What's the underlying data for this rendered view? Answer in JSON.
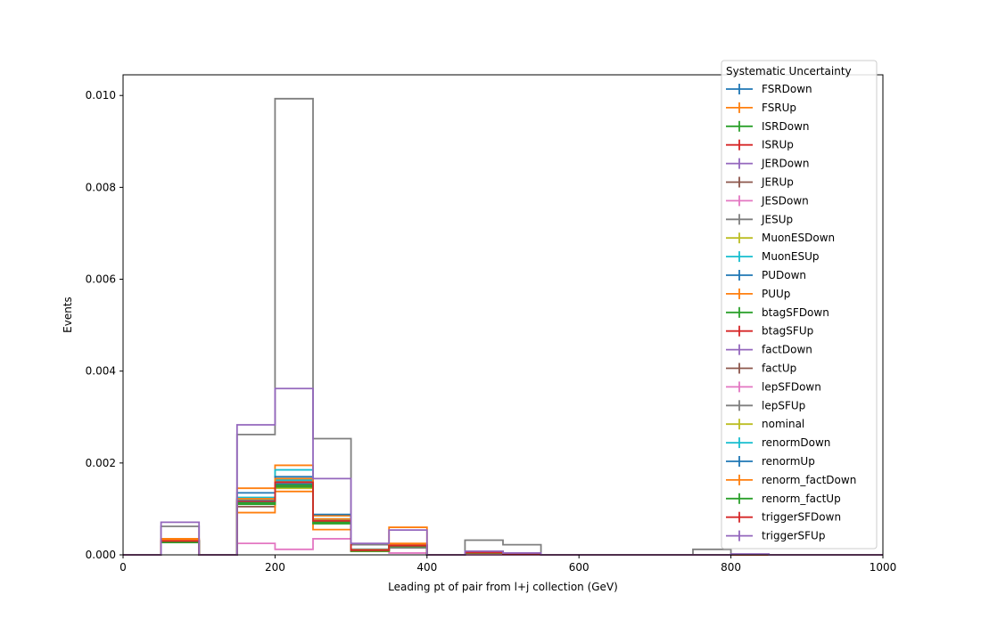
{
  "chart_data": {
    "type": "histogram-step",
    "xlabel": "Leading pt of pair from l+j collection (GeV)",
    "ylabel": "Events",
    "xlim": [
      0,
      1000
    ],
    "ylim": [
      0,
      0.01045
    ],
    "x_ticks": [
      0,
      200,
      400,
      600,
      800,
      1000
    ],
    "y_ticks": [
      0.0,
      0.002,
      0.004,
      0.006,
      0.008,
      0.01
    ],
    "x_tick_labels": [
      "0",
      "200",
      "400",
      "600",
      "800",
      "1000"
    ],
    "y_tick_labels": [
      "0.000",
      "0.002",
      "0.004",
      "0.006",
      "0.008",
      "0.010"
    ],
    "bin_edges": [
      0,
      50,
      100,
      150,
      200,
      250,
      300,
      350,
      400,
      450,
      500,
      550,
      600,
      650,
      700,
      750,
      800,
      850,
      900,
      950,
      1000
    ],
    "legend": {
      "title": "Systematic Uncertainty",
      "placement": "upper-right"
    },
    "series": [
      {
        "name": "FSRDown",
        "color": "#1f77b4",
        "values": [
          0,
          0.0003,
          0,
          0.0012,
          0.0015,
          0.00078,
          0.00012,
          0.00018,
          0,
          4e-05,
          2e-05,
          0,
          0,
          0,
          0,
          0,
          0,
          0,
          0,
          0
        ]
      },
      {
        "name": "FSRUp",
        "color": "#ff7f0e",
        "values": [
          0,
          0.00035,
          0,
          0.00145,
          0.00195,
          0.00085,
          0.0001,
          0.0006,
          0,
          6e-05,
          3e-05,
          0,
          0,
          0,
          0,
          0,
          0,
          0,
          0,
          0
        ]
      },
      {
        "name": "ISRDown",
        "color": "#2ca02c",
        "values": [
          0,
          0.00028,
          0,
          0.00115,
          0.0016,
          0.0007,
          8e-05,
          0.0002,
          0,
          8e-05,
          4e-05,
          0,
          0,
          0,
          0,
          0,
          0,
          0,
          0,
          0
        ]
      },
      {
        "name": "ISRUp",
        "color": "#d62728",
        "values": [
          0,
          0.0003,
          0,
          0.00118,
          0.00155,
          0.00074,
          0.0001,
          0.00022,
          0,
          5e-05,
          2e-05,
          0,
          0,
          0,
          0,
          0,
          0,
          0,
          0,
          0
        ]
      },
      {
        "name": "JERDown",
        "color": "#9467bd",
        "values": [
          0,
          0.00032,
          0,
          0.00122,
          0.00158,
          0.00076,
          0.00011,
          0.00021,
          0,
          5e-05,
          2e-05,
          0,
          0,
          0,
          0,
          0,
          0,
          0,
          0,
          0
        ]
      },
      {
        "name": "JERUp",
        "color": "#8c564b",
        "values": [
          0,
          0.00029,
          0,
          0.00105,
          0.0015,
          0.00075,
          0.0001,
          0.0002,
          0,
          5e-05,
          2e-05,
          0,
          0,
          0,
          0,
          0,
          0,
          0,
          0,
          0
        ]
      },
      {
        "name": "JESDown",
        "color": "#e377c2",
        "values": [
          0,
          0.0003,
          0,
          0.00025,
          0.00012,
          0.00035,
          0.0001,
          4e-05,
          0,
          0,
          0,
          0,
          0,
          0,
          0,
          0,
          0,
          0,
          0,
          0
        ]
      },
      {
        "name": "JESUp",
        "color": "#7f7f7f",
        "values": [
          0,
          0.00062,
          0,
          0.00262,
          0.00993,
          0.00253,
          0.00022,
          0.00015,
          0,
          0.00032,
          0.00022,
          0,
          0,
          0,
          0,
          0.00012,
          0,
          0,
          0,
          0
        ]
      },
      {
        "name": "MuonESDown",
        "color": "#bcbd22",
        "values": [
          0,
          0.00028,
          0,
          0.00112,
          0.00145,
          0.0007,
          8e-05,
          0.00018,
          0,
          4e-05,
          2e-05,
          0,
          0,
          0,
          0,
          0,
          0,
          0,
          0,
          0
        ]
      },
      {
        "name": "MuonESUp",
        "color": "#17becf",
        "values": [
          0,
          0.0003,
          0,
          0.00125,
          0.00185,
          0.00078,
          0.0001,
          0.0002,
          0,
          5e-05,
          2e-05,
          0,
          0,
          0,
          0,
          0,
          0,
          0,
          0,
          0
        ]
      },
      {
        "name": "PUDown",
        "color": "#1f77b4",
        "values": [
          0,
          0.00031,
          0,
          0.00135,
          0.0017,
          0.00088,
          0.00012,
          0.00019,
          0,
          5e-05,
          2e-05,
          0,
          0,
          0,
          0,
          0,
          0,
          0,
          0,
          0
        ]
      },
      {
        "name": "PUUp",
        "color": "#ff7f0e",
        "values": [
          0,
          0.00033,
          0,
          0.00092,
          0.00138,
          0.00055,
          8e-05,
          0.00025,
          0,
          4e-05,
          2e-05,
          0,
          0,
          0,
          0,
          0,
          0,
          0,
          0,
          0
        ]
      },
      {
        "name": "btagSFDown",
        "color": "#2ca02c",
        "values": [
          0,
          0.00027,
          0,
          0.0011,
          0.00148,
          0.00068,
          8e-05,
          0.00018,
          0,
          4e-05,
          2e-05,
          0,
          0,
          0,
          0,
          0,
          0,
          0,
          0,
          0
        ]
      },
      {
        "name": "btagSFUp",
        "color": "#d62728",
        "values": [
          0,
          0.00031,
          0,
          0.0012,
          0.00162,
          0.00076,
          0.0001,
          0.00021,
          0,
          5e-05,
          2e-05,
          0,
          0,
          0,
          0,
          0,
          0,
          0,
          0,
          0
        ]
      },
      {
        "name": "factDown",
        "color": "#9467bd",
        "values": [
          0,
          0.0003,
          0,
          0.00118,
          0.0016,
          0.00075,
          0.0001,
          0.0002,
          0,
          5e-05,
          2e-05,
          0,
          0,
          0,
          0,
          0,
          0,
          0,
          0,
          0
        ]
      },
      {
        "name": "factUp",
        "color": "#8c564b",
        "values": [
          0,
          0.00029,
          0,
          0.00116,
          0.00157,
          0.00073,
          0.0001,
          0.0002,
          0,
          5e-05,
          2e-05,
          0,
          0,
          0,
          0,
          0,
          0,
          0,
          0,
          0
        ]
      },
      {
        "name": "lepSFDown",
        "color": "#e377c2",
        "values": [
          0,
          0.00029,
          0,
          0.00114,
          0.00155,
          0.00072,
          0.0001,
          0.00019,
          0,
          5e-05,
          2e-05,
          0,
          0,
          0,
          0,
          0,
          0,
          0,
          0,
          0
        ]
      },
      {
        "name": "lepSFUp",
        "color": "#7f7f7f",
        "values": [
          0,
          0.0003,
          0,
          0.00119,
          0.00161,
          0.00076,
          0.0001,
          0.0002,
          0,
          5e-05,
          2e-05,
          0,
          0,
          0,
          0,
          0,
          0,
          0,
          0,
          0
        ]
      },
      {
        "name": "nominal",
        "color": "#bcbd22",
        "values": [
          0,
          0.0003,
          0,
          0.00117,
          0.00158,
          0.00074,
          0.0001,
          0.0002,
          0,
          5e-05,
          2e-05,
          0,
          0,
          0,
          0,
          0,
          0,
          0,
          0,
          0
        ]
      },
      {
        "name": "renormDown",
        "color": "#17becf",
        "values": [
          0,
          0.0003,
          0,
          0.0012,
          0.00163,
          0.00076,
          0.0001,
          0.0002,
          0,
          5e-05,
          2e-05,
          0,
          0,
          0,
          0,
          0,
          0,
          0,
          0,
          0
        ]
      },
      {
        "name": "renormUp",
        "color": "#1f77b4",
        "values": [
          0,
          0.00029,
          0,
          0.00115,
          0.00154,
          0.00072,
          0.0001,
          0.00019,
          0,
          5e-05,
          2e-05,
          0,
          0,
          0,
          0,
          0,
          0,
          0,
          0,
          0
        ]
      },
      {
        "name": "renorm_factDown",
        "color": "#ff7f0e",
        "values": [
          0,
          0.00031,
          0,
          0.00122,
          0.00166,
          0.00078,
          0.00011,
          0.00021,
          0,
          5e-05,
          2e-05,
          0,
          0,
          0,
          0,
          0,
          0,
          0,
          0,
          0
        ]
      },
      {
        "name": "renorm_factUp",
        "color": "#2ca02c",
        "values": [
          0,
          0.00029,
          0,
          0.00113,
          0.00152,
          0.00071,
          9e-05,
          0.00019,
          0,
          5e-05,
          2e-05,
          0,
          0,
          0,
          0,
          0,
          0,
          0,
          0,
          0
        ]
      },
      {
        "name": "triggerSFDown",
        "color": "#d62728",
        "values": [
          0,
          0.0003,
          0,
          0.00117,
          0.00158,
          0.00074,
          0.0001,
          0.0002,
          0,
          5e-05,
          2e-05,
          0,
          0,
          0,
          0,
          0,
          0,
          0,
          0,
          0
        ]
      },
      {
        "name": "triggerSFUp",
        "color": "#9467bd",
        "values": [
          0,
          0.00071,
          0,
          0.00283,
          0.00362,
          0.00166,
          0.00025,
          0.00054,
          0,
          8e-05,
          4e-05,
          0,
          0,
          0,
          0,
          0,
          2e-05,
          0,
          0,
          0
        ]
      }
    ]
  }
}
